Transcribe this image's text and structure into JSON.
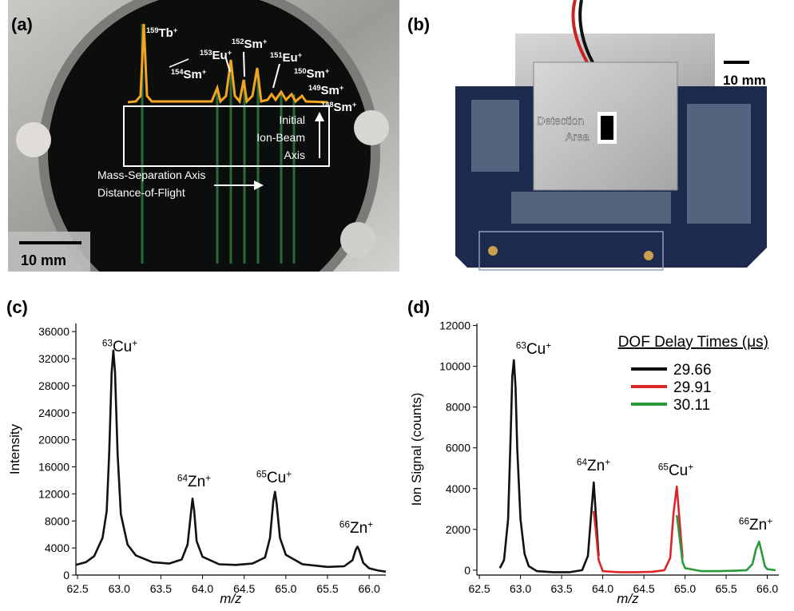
{
  "panels": {
    "a": {
      "label": "(a)",
      "ions": [
        {
          "mass": "159",
          "element": "Tb",
          "charge": "+"
        },
        {
          "mass": "153",
          "element": "Eu",
          "charge": "+"
        },
        {
          "mass": "152",
          "element": "Sm",
          "charge": "+"
        },
        {
          "mass": "154",
          "element": "Sm",
          "charge": "+"
        },
        {
          "mass": "151",
          "element": "Eu",
          "charge": "+"
        },
        {
          "mass": "150",
          "element": "Sm",
          "charge": "+"
        },
        {
          "mass": "149",
          "element": "Sm",
          "charge": "+"
        },
        {
          "mass": "148",
          "element": "Sm",
          "charge": "+"
        }
      ],
      "beam_axis": [
        "Initial",
        "Ion-Beam",
        "Axis"
      ],
      "mass_axis": [
        "Mass-Separation Axis",
        "Distance-of-Flight"
      ],
      "scale": "10 mm"
    },
    "b": {
      "label": "(b)",
      "detection": [
        "Detection",
        "Area"
      ],
      "scale": "10 mm"
    }
  },
  "chart_data": [
    {
      "type": "line",
      "panel_label": "(c)",
      "x_label": "m/z",
      "y_label": "Intensity",
      "color": "#111111",
      "x": [
        62.48,
        62.6,
        62.7,
        62.8,
        62.85,
        62.88,
        62.91,
        62.93,
        62.95,
        62.98,
        63.02,
        63.1,
        63.2,
        63.4,
        63.6,
        63.75,
        63.82,
        63.86,
        63.88,
        63.9,
        63.93,
        64.0,
        64.2,
        64.4,
        64.6,
        64.75,
        64.81,
        64.85,
        64.87,
        64.89,
        64.93,
        65.0,
        65.2,
        65.5,
        65.7,
        65.8,
        65.84,
        65.86,
        65.88,
        65.93,
        66.0,
        66.1,
        66.2
      ],
      "values": [
        1500,
        1900,
        2800,
        5500,
        9500,
        18000,
        30000,
        33200,
        30000,
        18000,
        9000,
        4500,
        2900,
        1900,
        1700,
        2300,
        4500,
        9000,
        11300,
        9500,
        5000,
        2700,
        1600,
        1500,
        1700,
        2600,
        5500,
        11000,
        12300,
        10500,
        5500,
        3000,
        1600,
        1200,
        1300,
        2200,
        3800,
        4200,
        3700,
        1800,
        1000,
        700,
        500
      ],
      "xlim": [
        62.48,
        66.2
      ],
      "ylim": [
        0,
        37200
      ],
      "xticks": [
        62.5,
        {
          "value": 63,
          "label": "63.0"
        },
        63.5,
        {
          "value": 64,
          "label": "64.0"
        },
        64.5,
        {
          "value": 65,
          "label": "65.0"
        },
        65.5,
        {
          "value": 66,
          "label": "66.0"
        }
      ],
      "yticks": [
        0,
        4000,
        8000,
        12000,
        16000,
        20000,
        24000,
        28000,
        32000,
        36000
      ],
      "annotations": [
        {
          "mass": "63",
          "element": "Cu",
          "charge": "+"
        },
        {
          "mass": "64",
          "element": "Zn",
          "charge": "+"
        },
        {
          "mass": "65",
          "element": "Cu",
          "charge": "+"
        },
        {
          "mass": "66",
          "element": "Zn",
          "charge": "+"
        }
      ]
    },
    {
      "type": "line",
      "panel_label": "(d)",
      "x_label": "m/z",
      "y_label": "Ion Signal (counts)",
      "legend_title": "DOF Delay Times (μs)",
      "x": [
        62.75,
        62.8,
        62.85,
        62.88,
        62.9,
        62.92,
        62.94,
        62.96,
        63.0,
        63.05,
        63.1,
        63.2,
        63.4,
        63.6,
        63.75,
        63.82,
        63.86,
        63.89,
        63.92,
        63.95,
        64.0,
        64.2,
        64.4,
        64.6,
        64.75,
        64.82,
        64.86,
        64.9,
        64.93,
        64.97,
        65.0,
        65.2,
        65.4,
        65.6,
        65.75,
        65.82,
        65.86,
        65.9,
        65.93,
        65.97,
        66.0,
        66.1
      ],
      "series": [
        {
          "name": "29.66",
          "color": "#111111",
          "values": [
            100,
            500,
            2500,
            6500,
            9500,
            10300,
            9000,
            6000,
            2500,
            800,
            200,
            -50,
            -100,
            -100,
            0,
            700,
            2800,
            4300,
            2500,
            700,
            null,
            null,
            null,
            null,
            null,
            null,
            null,
            null,
            null,
            null,
            null,
            null,
            null,
            null,
            null,
            null,
            null,
            null,
            null,
            null,
            null,
            null
          ]
        },
        {
          "name": "29.91",
          "color": "#d9262b",
          "values": [
            null,
            null,
            null,
            null,
            null,
            null,
            null,
            null,
            null,
            null,
            null,
            null,
            null,
            null,
            null,
            null,
            null,
            2900,
            1800,
            500,
            -50,
            -100,
            -100,
            -80,
            0,
            600,
            2800,
            4100,
            2600,
            600,
            null,
            null,
            null,
            null,
            null,
            null,
            null,
            null,
            null,
            null,
            null,
            null
          ]
        },
        {
          "name": "30.11",
          "color": "#2a9a3c",
          "values": [
            null,
            null,
            null,
            null,
            null,
            null,
            null,
            null,
            null,
            null,
            null,
            null,
            null,
            null,
            null,
            null,
            null,
            null,
            null,
            null,
            null,
            null,
            null,
            null,
            null,
            null,
            null,
            2700,
            1700,
            400,
            100,
            -50,
            -50,
            -30,
            0,
            300,
            1000,
            1400,
            900,
            200,
            50,
            0
          ]
        }
      ],
      "xlim": [
        62.47,
        66.14
      ],
      "ylim": [
        -240,
        12100
      ],
      "xticks": [
        62.5,
        {
          "value": 63,
          "label": "63.0"
        },
        63.5,
        {
          "value": 64,
          "label": "64.0"
        },
        64.5,
        {
          "value": 65,
          "label": "65.0"
        },
        65.5,
        {
          "value": 66,
          "label": "66.0"
        }
      ],
      "yticks": [
        0,
        2000,
        4000,
        6000,
        8000,
        10000,
        12000
      ],
      "annotations": [
        {
          "mass": "63",
          "element": "Cu",
          "charge": "+"
        },
        {
          "mass": "64",
          "element": "Zn",
          "charge": "+"
        },
        {
          "mass": "65",
          "element": "Cu",
          "charge": "+"
        },
        {
          "mass": "66",
          "element": "Zn",
          "charge": "+"
        }
      ]
    }
  ]
}
